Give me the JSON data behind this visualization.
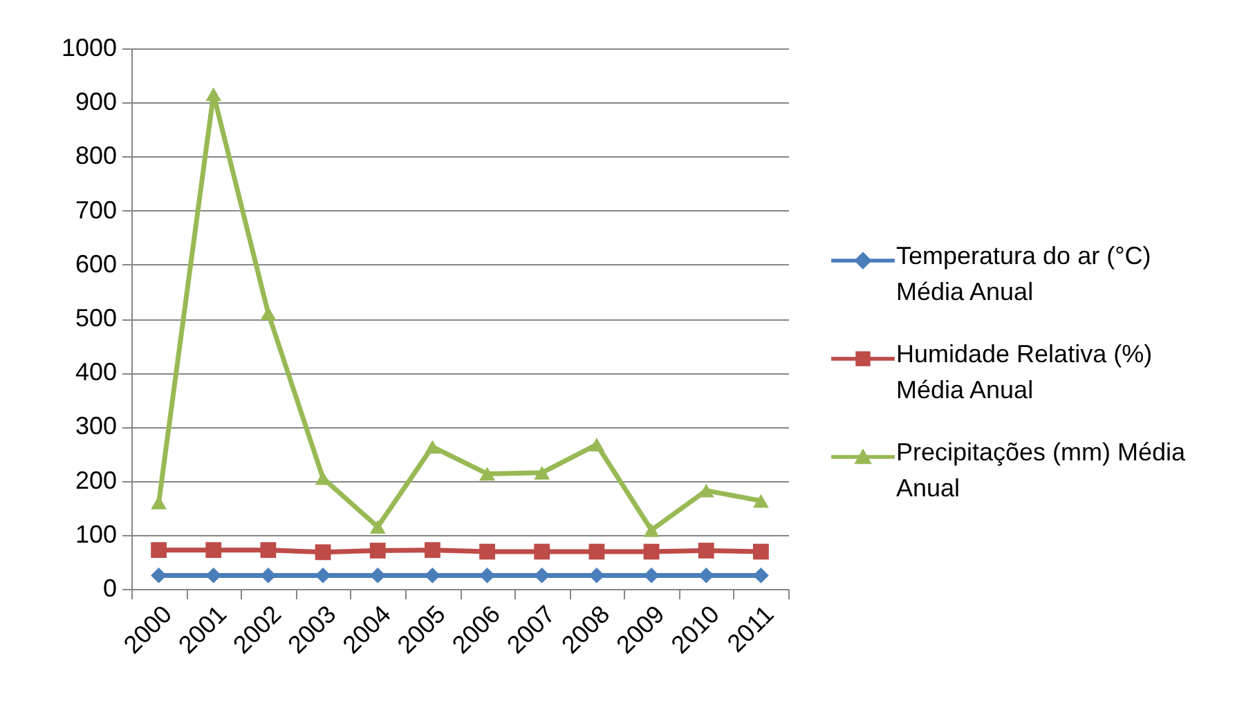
{
  "chart_data": {
    "type": "line",
    "categories": [
      "2000",
      "2001",
      "2002",
      "2003",
      "2004",
      "2005",
      "2006",
      "2007",
      "2008",
      "2009",
      "2010",
      "2011"
    ],
    "series": [
      {
        "name": "Temperatura do ar (°C) Média Anual",
        "color": "#4a7ebb",
        "marker": "diamond",
        "values": [
          25,
          25,
          25,
          25,
          25,
          25,
          25,
          25,
          25,
          25,
          25,
          25
        ]
      },
      {
        "name": "Humidade Relativa (%) Média Anual",
        "color": "#be4b48",
        "marker": "square",
        "values": [
          72,
          72,
          72,
          68,
          71,
          72,
          69,
          69,
          69,
          69,
          71,
          69
        ]
      },
      {
        "name": "Precipitações (mm) Média Anual",
        "color": "#98b954",
        "marker": "triangle",
        "values": [
          160,
          915,
          510,
          205,
          115,
          263,
          213,
          215,
          267,
          109,
          182,
          163
        ]
      }
    ],
    "ylim": [
      0,
      1000
    ],
    "yticks": [
      0,
      100,
      200,
      300,
      400,
      500,
      600,
      700,
      800,
      900,
      1000
    ],
    "grid": "y",
    "legend": "right"
  }
}
